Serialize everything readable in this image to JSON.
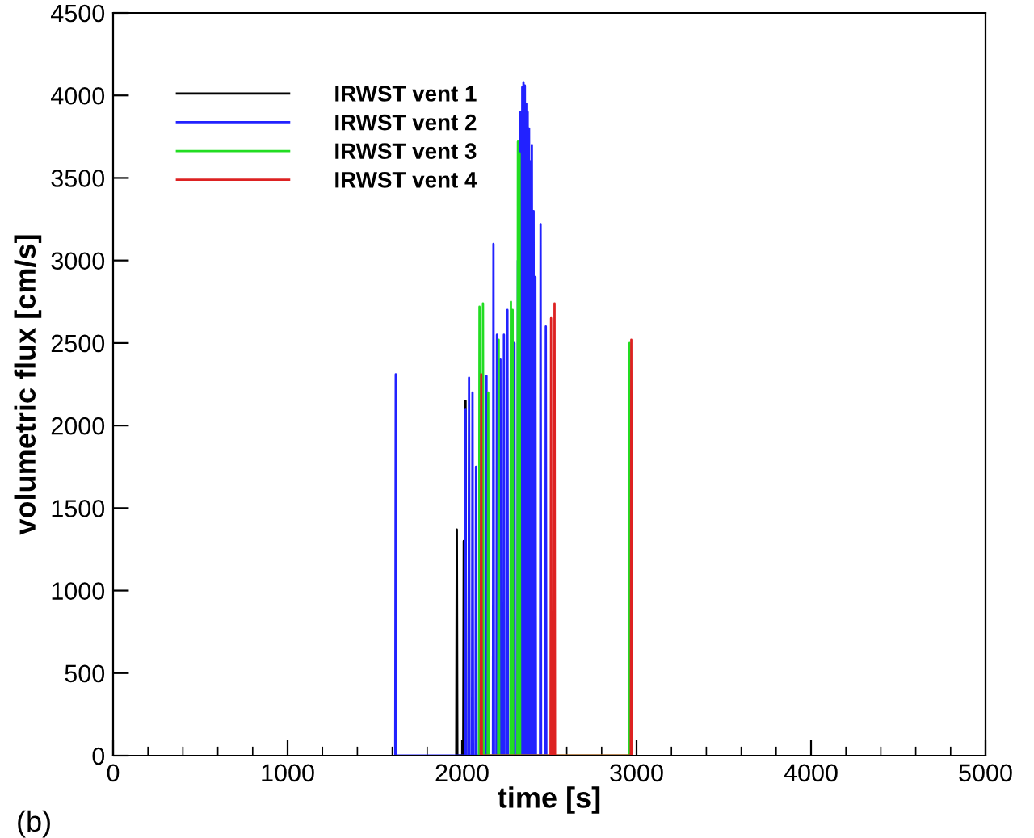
{
  "chart_data": {
    "type": "line",
    "xlabel": "time [s]",
    "ylabel": "volumetric flux [cm/s]",
    "xlim": [
      0,
      5000
    ],
    "xticks": [
      0,
      1000,
      2000,
      3000,
      4000,
      5000
    ],
    "ylim": [
      0,
      4500
    ],
    "yticks": [
      0,
      500,
      1000,
      1500,
      2000,
      2500,
      3000,
      3500,
      4000,
      4500
    ],
    "grid": false,
    "legend": "top left",
    "marker": "none",
    "line_style": "solid",
    "annotations": [
      "(b)"
    ],
    "series": [
      {
        "name": "IRWST vent 1",
        "color": "#000000",
        "x": [
          1967,
          1970,
          1973,
          2007,
          2010,
          2013,
          2017,
          2020,
          2023
        ],
        "values": [
          0,
          1370,
          0,
          0,
          1300,
          0,
          0,
          2150,
          0
        ]
      },
      {
        "name": "IRWST vent 2",
        "color": "#2222ff",
        "x": [
          1617,
          1620,
          1623,
          2017,
          2020,
          2023,
          2037,
          2040,
          2043,
          2057,
          2060,
          2063,
          2077,
          2080,
          2083,
          2137,
          2140,
          2143,
          2177,
          2180,
          2183,
          2197,
          2200,
          2203,
          2217,
          2220,
          2223,
          2237,
          2240,
          2243,
          2257,
          2260,
          2263,
          2297,
          2300,
          2303,
          2317,
          2320,
          2323,
          2332,
          2335,
          2338,
          2342,
          2345,
          2348,
          2349,
          2352,
          2355,
          2357,
          2360,
          2363,
          2365,
          2368,
          2371,
          2373,
          2376,
          2379,
          2381,
          2384,
          2387,
          2389,
          2392,
          2395,
          2397,
          2400,
          2403,
          2407,
          2410,
          2413,
          2417,
          2420,
          2423,
          2447,
          2450,
          2453,
          2477,
          2480,
          2483
        ],
        "values": [
          0,
          2310,
          0,
          0,
          2100,
          0,
          0,
          2290,
          0,
          0,
          2200,
          0,
          0,
          1750,
          0,
          0,
          2300,
          0,
          0,
          3100,
          0,
          0,
          2550,
          0,
          0,
          2400,
          0,
          0,
          2550,
          0,
          0,
          2700,
          0,
          0,
          2500,
          0,
          0,
          3000,
          0,
          0,
          3900,
          0,
          0,
          4050,
          0,
          0,
          4080,
          0,
          0,
          4060,
          0,
          0,
          3950,
          0,
          0,
          3900,
          0,
          0,
          3800,
          0,
          0,
          3600,
          0,
          0,
          3700,
          0,
          0,
          3300,
          0,
          0,
          2900,
          0,
          0,
          3220,
          0,
          0,
          2600,
          0
        ]
      },
      {
        "name": "IRWST vent 3",
        "color": "#22dd22",
        "x": [
          2097,
          2100,
          2103,
          2117,
          2120,
          2123,
          2147,
          2150,
          2153,
          2207,
          2210,
          2213,
          2277,
          2280,
          2283,
          2287,
          2290,
          2293,
          2317,
          2320,
          2323,
          2327,
          2330,
          2333,
          2957,
          2960,
          2963
        ],
        "values": [
          0,
          2720,
          0,
          0,
          2740,
          0,
          0,
          2200,
          0,
          0,
          2520,
          0,
          0,
          2750,
          0,
          0,
          2700,
          0,
          0,
          3720,
          0,
          0,
          3650,
          0,
          0,
          2500,
          0
        ]
      },
      {
        "name": "IRWST vent 4",
        "color": "#dd2222",
        "x": [
          2107,
          2110,
          2113,
          2507,
          2510,
          2513,
          2527,
          2530,
          2533,
          2967,
          2970,
          2973
        ],
        "values": [
          0,
          2310,
          0,
          0,
          2650,
          0,
          0,
          2740,
          0,
          0,
          2520,
          0
        ]
      }
    ]
  }
}
